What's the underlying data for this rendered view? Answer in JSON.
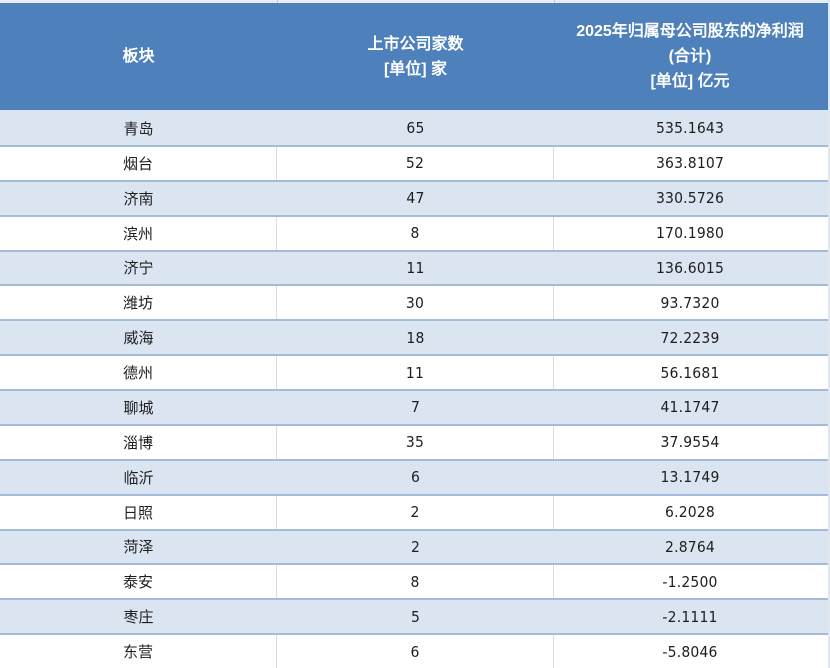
{
  "table": {
    "header": {
      "col1": {
        "line1": "板块"
      },
      "col2": {
        "line1": "上市公司家数",
        "line2": "[单位] 家"
      },
      "col3": {
        "line1": "2025年归属母公司股东的净利润",
        "line2": "(合计)",
        "line3": "[单位] 亿元"
      }
    },
    "rows": [
      {
        "region": "青岛",
        "companies": "65",
        "profit": "535.1643"
      },
      {
        "region": "烟台",
        "companies": "52",
        "profit": "363.8107"
      },
      {
        "region": "济南",
        "companies": "47",
        "profit": "330.5726"
      },
      {
        "region": "滨州",
        "companies": "8",
        "profit": "170.1980"
      },
      {
        "region": "济宁",
        "companies": "11",
        "profit": "136.6015"
      },
      {
        "region": "潍坊",
        "companies": "30",
        "profit": "93.7320"
      },
      {
        "region": "威海",
        "companies": "18",
        "profit": "72.2239"
      },
      {
        "region": "德州",
        "companies": "11",
        "profit": "56.1681"
      },
      {
        "region": "聊城",
        "companies": "7",
        "profit": "41.1747"
      },
      {
        "region": "淄博",
        "companies": "35",
        "profit": "37.9554"
      },
      {
        "region": "临沂",
        "companies": "6",
        "profit": "13.1749"
      },
      {
        "region": "日照",
        "companies": "2",
        "profit": "6.2028"
      },
      {
        "region": "菏泽",
        "companies": "2",
        "profit": "2.8764"
      },
      {
        "region": "泰安",
        "companies": "8",
        "profit": "-1.2500"
      },
      {
        "region": "枣庄",
        "companies": "5",
        "profit": "-2.1111"
      },
      {
        "region": "东营",
        "companies": "6",
        "profit": "-5.8046"
      }
    ]
  },
  "colors": {
    "header_bg": "#4E80BC",
    "shade_row_bg": "#DBE5F1",
    "plain_row_bg": "#FFFFFF",
    "row_border": "#A4BBDA",
    "column_divider": "#DCDCDC",
    "header_text": "#FFFFFF",
    "body_text": "#1E1E1E"
  },
  "chart_data": {
    "type": "table",
    "title": "",
    "columns": [
      "板块",
      "上市公司家数 [单位] 家",
      "2025年归属母公司股东的净利润 (合计) [单位] 亿元"
    ],
    "categories": [
      "青岛",
      "烟台",
      "济南",
      "滨州",
      "济宁",
      "潍坊",
      "威海",
      "德州",
      "聊城",
      "淄博",
      "临沂",
      "日照",
      "菏泽",
      "泰安",
      "枣庄",
      "东营"
    ],
    "series": [
      {
        "name": "上市公司家数 (家)",
        "values": [
          65,
          52,
          47,
          8,
          11,
          30,
          18,
          11,
          7,
          35,
          6,
          2,
          2,
          8,
          5,
          6
        ]
      },
      {
        "name": "2025年归属母公司股东的净利润合计 (亿元)",
        "values": [
          535.1643,
          363.8107,
          330.5726,
          170.198,
          136.6015,
          93.732,
          72.2239,
          56.1681,
          41.1747,
          37.9554,
          13.1749,
          6.2028,
          2.8764,
          -1.25,
          -2.1111,
          -5.8046
        ]
      }
    ]
  }
}
